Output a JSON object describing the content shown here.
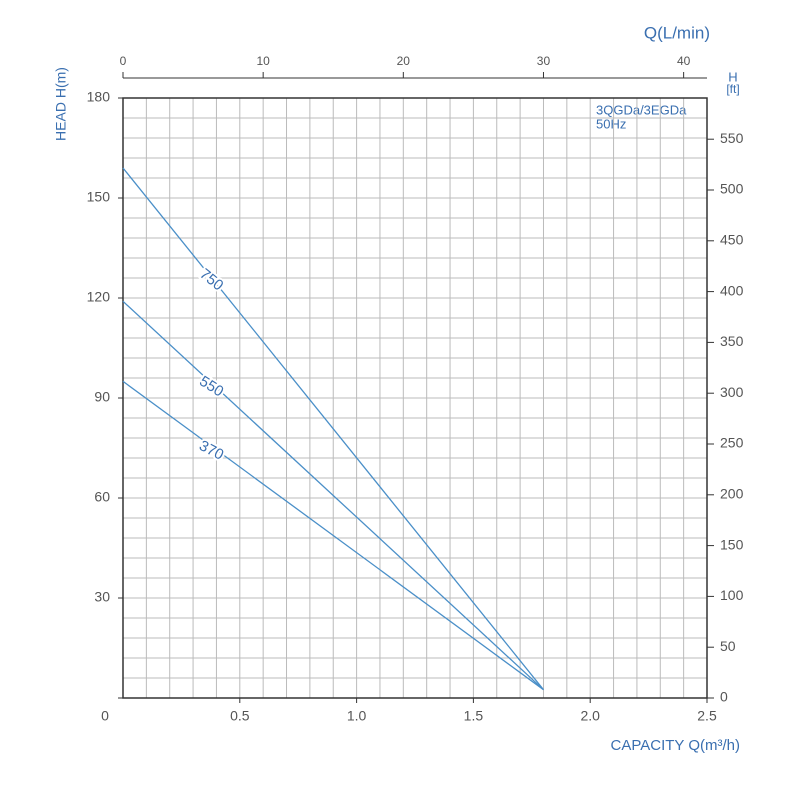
{
  "chart_data": {
    "type": "line",
    "ylabel": "HEAD H(m)",
    "xlabel": "CAPACITY Q(m³/h)",
    "x2label": "Q(L/min)",
    "y2label": "H",
    "y2unit": "[ft]",
    "annotation": [
      "3QGDa/3EGDa",
      "50Hz"
    ],
    "x": [
      0,
      1.8
    ],
    "series": [
      {
        "name": "750",
        "color": "#4a8fc8",
        "values": [
          159,
          2.5
        ]
      },
      {
        "name": "550",
        "color": "#4a8fc8",
        "values": [
          119,
          2.5
        ]
      },
      {
        "name": "370",
        "color": "#4a8fc8",
        "values": [
          95,
          2.5
        ]
      }
    ],
    "xlim": [
      0,
      2.5
    ],
    "xticks": [
      0.5,
      {
        "value": 1,
        "label": "1.0"
      },
      1.5,
      {
        "value": 2,
        "label": "2.0"
      },
      2.5
    ],
    "ylim": [
      0,
      180
    ],
    "yticks": [
      0,
      30,
      60,
      90,
      120,
      150,
      180
    ],
    "x2lim": [
      0,
      41.667
    ],
    "x2ticks": [
      0,
      10,
      20,
      30,
      40
    ],
    "y2lim": [
      0,
      590.55
    ],
    "y2ticks": [
      0,
      50,
      100,
      150,
      200,
      250,
      300,
      350,
      400,
      450,
      500,
      550
    ],
    "xgrid": 0.1,
    "ygrid": 6,
    "grid": true
  }
}
